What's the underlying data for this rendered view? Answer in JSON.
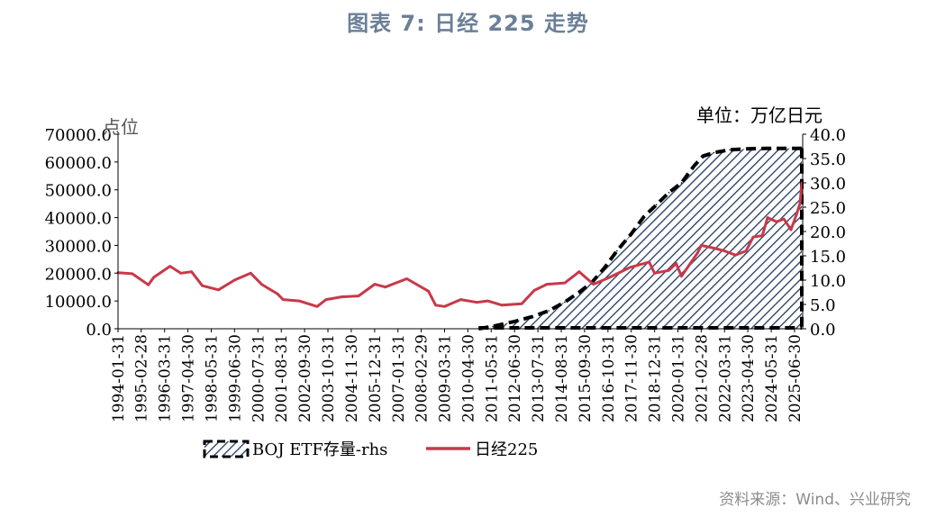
{
  "figure_title": "图表 7: 日经 225 走势",
  "source_note": "资料来源：Wind、兴业研究",
  "colors": {
    "nikkei": "#c8394a",
    "etf_hatch": "#1f3a5f",
    "etf_line": "#000000",
    "title": "#6b7f98"
  },
  "chart_data": {
    "type": "line",
    "left_axis_unit": "点位",
    "right_axis_unit": "单位：万亿日元",
    "ylim": [
      0,
      70000
    ],
    "y2lim": [
      0,
      40
    ],
    "left_ticks": [
      "0.0",
      "10000.0",
      "20000.0",
      "30000.0",
      "40000.0",
      "50000.0",
      "60000.0",
      "70000.0"
    ],
    "right_ticks": [
      "0.0",
      "5.0",
      "10.0",
      "15.0",
      "20.0",
      "25.0",
      "30.0",
      "35.0",
      "40.0"
    ],
    "x_ticks": [
      "1994-01-31",
      "1995-02-28",
      "1996-03-31",
      "1997-04-30",
      "1998-05-31",
      "1999-06-30",
      "2000-07-31",
      "2001-08-31",
      "2002-09-30",
      "2003-10-31",
      "2004-11-30",
      "2005-12-31",
      "2007-01-31",
      "2008-02-29",
      "2009-03-31",
      "2010-04-30",
      "2011-05-31",
      "2012-06-30",
      "2013-07-31",
      "2014-08-31",
      "2015-09-30",
      "2016-10-31",
      "2017-11-30",
      "2018-12-31",
      "2020-01-31",
      "2021-02-28",
      "2022-03-31",
      "2023-04-30",
      "2024-05-31",
      "2025-06-30"
    ],
    "grid": false,
    "legend_position": "bottom",
    "series": [
      {
        "name": "BOJ ETF存量-rhs",
        "axis": "right",
        "style": "hatched-area",
        "x": [
          "2010-10-31",
          "2011-06-30",
          "2012-06-30",
          "2013-04-30",
          "2014-01-31",
          "2014-10-31",
          "2015-06-30",
          "2016-01-31",
          "2016-08-31",
          "2017-03-31",
          "2017-11-30",
          "2018-06-30",
          "2019-01-31",
          "2019-08-31",
          "2020-03-31",
          "2020-10-31",
          "2021-03-31",
          "2021-09-30",
          "2022-06-30",
          "2023-04-30",
          "2024-03-31",
          "2025-06-30",
          "2025-10-31"
        ],
        "values": [
          0.0,
          0.5,
          1.5,
          2.5,
          3.7,
          5.5,
          7.5,
          9.5,
          12.5,
          16.0,
          19.5,
          23.0,
          25.5,
          28.0,
          30.0,
          33.5,
          35.5,
          36.2,
          36.8,
          37.0,
          37.1,
          37.1,
          37.1
        ]
      },
      {
        "name": "日经225",
        "axis": "left",
        "style": "line",
        "x": [
          "1994-01-31",
          "1994-09-30",
          "1995-06-30",
          "1995-09-30",
          "1996-06-30",
          "1996-12-31",
          "1997-06-30",
          "1997-12-31",
          "1998-09-30",
          "1999-06-30",
          "2000-03-31",
          "2000-09-30",
          "2001-06-30",
          "2001-09-30",
          "2002-06-30",
          "2003-04-30",
          "2003-09-30",
          "2004-06-30",
          "2005-03-31",
          "2005-12-31",
          "2006-06-30",
          "2007-06-30",
          "2008-06-30",
          "2008-10-31",
          "2009-03-31",
          "2009-12-31",
          "2010-09-30",
          "2011-03-31",
          "2011-11-30",
          "2012-10-31",
          "2013-05-31",
          "2013-12-31",
          "2014-10-31",
          "2015-06-30",
          "2016-02-29",
          "2016-11-30",
          "2017-10-31",
          "2018-09-30",
          "2018-12-31",
          "2019-08-31",
          "2019-12-31",
          "2020-03-31",
          "2020-12-31",
          "2021-02-28",
          "2021-09-30",
          "2022-03-31",
          "2022-09-30",
          "2023-03-31",
          "2023-07-31",
          "2023-12-31",
          "2024-03-31",
          "2024-08-31",
          "2024-12-31",
          "2025-04-30",
          "2025-07-31",
          "2025-09-30",
          "2025-10-31"
        ],
        "values": [
          20200,
          19800,
          15800,
          18500,
          22500,
          20000,
          20500,
          15500,
          14000,
          17500,
          20000,
          16000,
          12500,
          10500,
          10000,
          8000,
          10500,
          11500,
          11800,
          16000,
          15000,
          18000,
          13500,
          8500,
          8000,
          10500,
          9500,
          10000,
          8500,
          9000,
          13800,
          16000,
          16500,
          20500,
          16000,
          18500,
          22000,
          24000,
          20000,
          21000,
          23500,
          18900,
          27400,
          30000,
          29000,
          28000,
          26500,
          28000,
          33000,
          33500,
          40000,
          38500,
          39500,
          35600,
          41000,
          45000,
          52400
        ]
      }
    ]
  }
}
